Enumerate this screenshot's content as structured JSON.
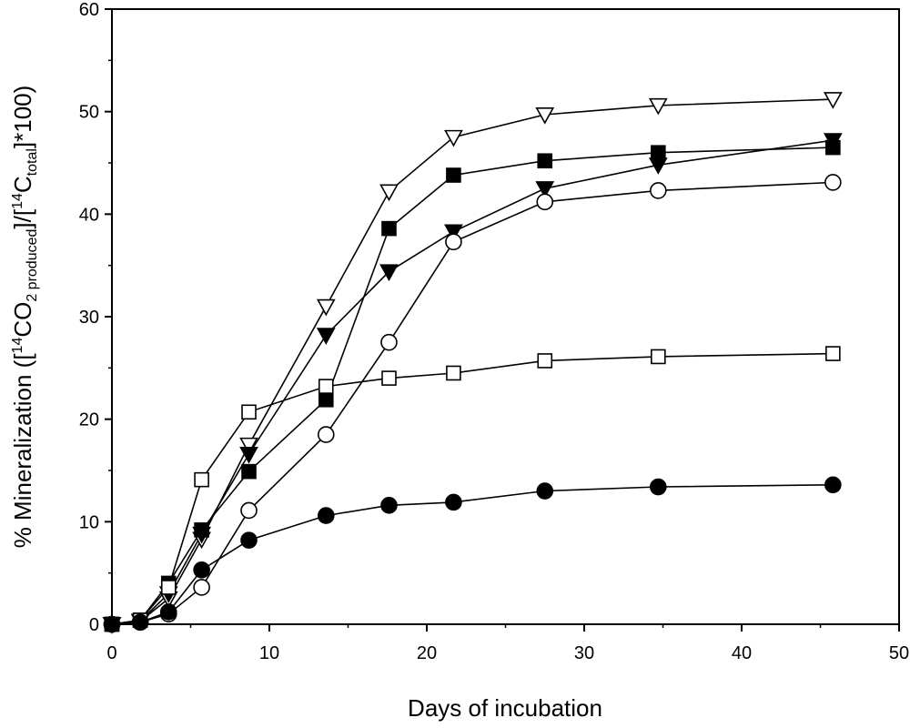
{
  "chart_data": {
    "type": "line",
    "title": "",
    "xlabel": "Days of incubation",
    "ylabel": {
      "prefix": "% Mineralization ([",
      "sup1": "14",
      "co": "CO",
      "sub1": "2 produced",
      "mid": "]/[",
      "sup2": "14",
      "c": "C",
      "sub2": "total",
      "suffix": "]*100)"
    },
    "xlim": [
      0,
      50
    ],
    "ylim": [
      0,
      60
    ],
    "xticks": [
      "0",
      "10",
      "20",
      "30",
      "40",
      "50"
    ],
    "yticks": [
      "0",
      "10",
      "20",
      "30",
      "40",
      "50",
      "60"
    ],
    "grid": false,
    "series": [
      {
        "name": "open-triangle-down",
        "marker": "triangle-down",
        "filled": false,
        "x": [
          0,
          1.8,
          3.6,
          5.7,
          8.7,
          13.6,
          17.6,
          21.7,
          27.5,
          34.7,
          45.8
        ],
        "values": [
          0,
          0.3,
          2.5,
          8.3,
          17.5,
          31.0,
          42.2,
          47.5,
          49.7,
          50.6,
          51.2
        ]
      },
      {
        "name": "filled-square",
        "marker": "square",
        "filled": true,
        "x": [
          0,
          1.8,
          3.6,
          5.7,
          8.7,
          13.6,
          17.6,
          21.7,
          27.5,
          34.7,
          45.8
        ],
        "values": [
          0,
          0.4,
          4.0,
          9.2,
          14.9,
          21.9,
          38.6,
          43.8,
          45.2,
          46.0,
          46.5
        ]
      },
      {
        "name": "filled-triangle-down",
        "marker": "triangle-down",
        "filled": true,
        "x": [
          0,
          1.8,
          3.6,
          5.7,
          8.7,
          13.6,
          17.6,
          21.7,
          27.5,
          34.7,
          45.8
        ],
        "values": [
          0,
          0.3,
          3.0,
          8.8,
          16.6,
          28.2,
          34.4,
          38.3,
          42.5,
          44.8,
          47.2
        ]
      },
      {
        "name": "open-circle",
        "marker": "circle",
        "filled": false,
        "x": [
          0,
          1.8,
          3.6,
          5.7,
          8.7,
          13.6,
          17.6,
          21.7,
          27.5,
          34.7,
          45.8
        ],
        "values": [
          0,
          0.2,
          1.0,
          3.6,
          11.1,
          18.5,
          27.5,
          37.3,
          41.2,
          42.3,
          43.1
        ]
      },
      {
        "name": "open-square",
        "marker": "square",
        "filled": false,
        "x": [
          0,
          1.8,
          3.6,
          5.7,
          8.7,
          13.6,
          17.6,
          21.7,
          27.5,
          34.7,
          45.8
        ],
        "values": [
          0,
          0.4,
          3.6,
          14.1,
          20.7,
          23.2,
          24.0,
          24.5,
          25.7,
          26.1,
          26.4
        ]
      },
      {
        "name": "filled-circle",
        "marker": "circle",
        "filled": true,
        "x": [
          0,
          1.8,
          3.6,
          5.7,
          8.7,
          13.6,
          17.6,
          21.7,
          27.5,
          34.7,
          45.8
        ],
        "values": [
          0,
          0.2,
          1.2,
          5.3,
          8.2,
          10.6,
          11.6,
          11.9,
          13.0,
          13.4,
          13.6
        ]
      }
    ]
  }
}
